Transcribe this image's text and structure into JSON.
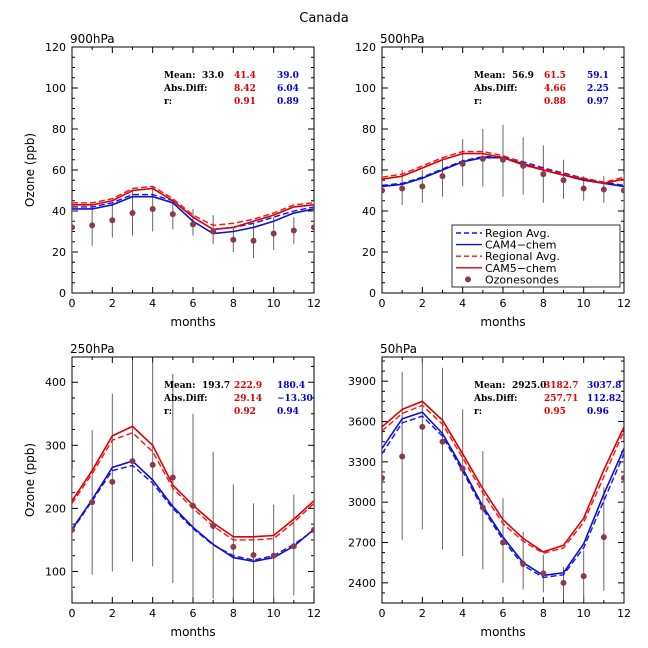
{
  "figure_title": "Canada",
  "x_label": "months",
  "y_label": "Ozone (ppb)",
  "stat_labels": {
    "mean": "Mean:",
    "absdiff": "Abs.Diff:",
    "r": "r:"
  },
  "legend": [
    {
      "label": "Region Avg.",
      "style": "dashed",
      "color": "#1010ff",
      "marker": "line"
    },
    {
      "label": "CAM4−chem",
      "style": "solid",
      "color": "#1010cc",
      "marker": "line"
    },
    {
      "label": "Regional Avg.",
      "style": "dashed",
      "color": "#ff1010",
      "marker": "line"
    },
    {
      "label": "CAM5−chem",
      "style": "solid",
      "color": "#dd0000",
      "marker": "line"
    },
    {
      "label": "Ozonesondes",
      "style": "none",
      "color": "#8b3a4a",
      "marker": "dot"
    }
  ],
  "colors": {
    "blue": "#1010ff",
    "blue_solid": "#1010cc",
    "red": "#ff1010",
    "red_solid": "#dd0000",
    "obs": "#8b3a4a",
    "obs_bar": "#666666"
  },
  "chart_data": [
    {
      "type": "line",
      "title": "900hPa",
      "xlim": [
        0,
        12
      ],
      "ylim": [
        0,
        120
      ],
      "x_ticks": [
        0,
        2,
        4,
        6,
        8,
        10,
        12
      ],
      "y_ticks": [
        0,
        20,
        40,
        60,
        80,
        100,
        120
      ],
      "show_ylabel": true,
      "stats": {
        "mean_obs": "33.0",
        "mean_red": "41.4",
        "mean_blue": "39.0",
        "absdiff_red": "8.42",
        "absdiff_blue": "6.04",
        "r_red": "0.91",
        "r_blue": "0.89"
      },
      "x": [
        0,
        1,
        2,
        3,
        4,
        5,
        6,
        7,
        8,
        9,
        10,
        11,
        12
      ],
      "series": [
        {
          "name": "Region Avg.",
          "values": [
            42,
            42,
            44,
            48,
            48,
            45,
            37,
            31,
            32,
            34,
            37,
            40,
            42
          ]
        },
        {
          "name": "CAM4−chem",
          "values": [
            41,
            41,
            43,
            47,
            47,
            44,
            35,
            29,
            30,
            32,
            35,
            39,
            41
          ]
        },
        {
          "name": "Regional Avg.",
          "values": [
            44,
            44,
            46,
            51,
            52,
            46,
            38,
            33,
            34,
            36,
            39,
            43,
            44
          ]
        },
        {
          "name": "CAM5−chem",
          "values": [
            43,
            43,
            45,
            50,
            51,
            45,
            37,
            31,
            32,
            35,
            38,
            42,
            43
          ]
        }
      ],
      "obs": {
        "values": [
          32,
          33,
          35.5,
          39,
          41,
          38.5,
          33.5,
          30,
          26,
          25.5,
          29,
          30.5,
          32
        ],
        "lo": [
          19,
          23,
          27,
          28,
          30,
          31,
          28,
          24,
          20,
          17,
          21,
          24,
          19
        ],
        "hi": [
          45,
          43,
          44,
          50,
          52,
          46,
          41,
          38,
          32,
          34,
          37,
          37,
          45
        ]
      }
    },
    {
      "type": "line",
      "title": "500hPa",
      "xlim": [
        0,
        12
      ],
      "ylim": [
        0,
        120
      ],
      "x_ticks": [
        0,
        2,
        4,
        6,
        8,
        10,
        12
      ],
      "y_ticks": [
        0,
        20,
        40,
        60,
        80,
        100,
        120
      ],
      "show_ylabel": false,
      "stats": {
        "mean_obs": "56.9",
        "mean_red": "61.5",
        "mean_blue": "59.1",
        "absdiff_red": "4.66",
        "absdiff_blue": "2.25",
        "r_red": "0.88",
        "r_blue": "0.97"
      },
      "x": [
        0,
        1,
        2,
        3,
        4,
        5,
        6,
        7,
        8,
        9,
        10,
        11,
        12
      ],
      "series": [
        {
          "name": "Region Avg.",
          "values": [
            52.5,
            53.5,
            56.5,
            60.5,
            64.5,
            66.5,
            66.5,
            64,
            61,
            58.5,
            56,
            54,
            52.5
          ]
        },
        {
          "name": "CAM4−chem",
          "values": [
            52,
            53,
            56,
            60,
            64,
            66,
            66,
            63,
            60,
            57.5,
            55,
            53.5,
            52
          ]
        },
        {
          "name": "Regional Avg.",
          "values": [
            56.5,
            58,
            62,
            66,
            69,
            69,
            67,
            63.5,
            60.5,
            58,
            56,
            54,
            56.5
          ]
        },
        {
          "name": "CAM5−chem",
          "values": [
            55.5,
            57,
            61,
            65,
            68,
            68,
            66,
            62.5,
            60,
            57.5,
            55.5,
            53.5,
            55.5
          ]
        }
      ],
      "obs": {
        "values": [
          50,
          51,
          52,
          57,
          63,
          65.5,
          65,
          62,
          58,
          55,
          51,
          50.5,
          50
        ],
        "lo": [
          41,
          43,
          44,
          47,
          52,
          52,
          47,
          48,
          44,
          46,
          45,
          44,
          41
        ],
        "hi": [
          58,
          60,
          60,
          66,
          75,
          80,
          82,
          76,
          72,
          65,
          57,
          57,
          58
        ]
      }
    },
    {
      "type": "line",
      "title": "250hPa",
      "xlim": [
        0,
        12
      ],
      "ylim": [
        50,
        440
      ],
      "x_ticks": [
        0,
        2,
        4,
        6,
        8,
        10,
        12
      ],
      "y_ticks": [
        100,
        200,
        300,
        400
      ],
      "show_ylabel": true,
      "stats": {
        "mean_obs": "193.7",
        "mean_red": "222.9",
        "mean_blue": "180.4",
        "absdiff_red": "29.14",
        "absdiff_blue": "−13.30",
        "r_red": "0.92",
        "r_blue": "0.94"
      },
      "x": [
        0,
        1,
        2,
        3,
        4,
        5,
        6,
        7,
        8,
        9,
        10,
        11,
        12
      ],
      "series": [
        {
          "name": "Region Avg.",
          "values": [
            165,
            212,
            260,
            268,
            240,
            200,
            168,
            142,
            125,
            118,
            125,
            143,
            165
          ]
        },
        {
          "name": "CAM4−chem",
          "values": [
            167,
            214,
            265,
            275,
            245,
            203,
            170,
            143,
            122,
            116,
            122,
            140,
            167
          ]
        },
        {
          "name": "Regional Avg.",
          "values": [
            208,
            255,
            308,
            320,
            290,
            232,
            200,
            172,
            150,
            150,
            152,
            178,
            208
          ]
        },
        {
          "name": "CAM5−chem",
          "values": [
            212,
            260,
            315,
            330,
            300,
            237,
            205,
            177,
            155,
            155,
            157,
            183,
            212
          ]
        }
      ],
      "obs": {
        "values": [
          166,
          210,
          242,
          275,
          269,
          249,
          204,
          172,
          139,
          126,
          125,
          140,
          166
        ],
        "lo": [
          70,
          95,
          100,
          116,
          108,
          82,
          60,
          57,
          55,
          53,
          52,
          62,
          70
        ],
        "hi": [
          262,
          324,
          382,
          436,
          432,
          413,
          350,
          290,
          238,
          208,
          206,
          222,
          262
        ]
      }
    },
    {
      "type": "line",
      "title": "50hPa",
      "xlim": [
        0,
        12
      ],
      "ylim": [
        2250,
        4080
      ],
      "x_ticks": [
        0,
        2,
        4,
        6,
        8,
        10,
        12
      ],
      "y_ticks": [
        2400,
        2700,
        3000,
        3300,
        3600,
        3900
      ],
      "show_ylabel": false,
      "stats": {
        "mean_obs": "2925.0",
        "mean_red": "3182.7",
        "mean_blue": "3037.8",
        "absdiff_red": "257.71",
        "absdiff_blue": "112.82",
        "r_red": "0.95",
        "r_blue": "0.96"
      },
      "x": [
        0,
        1,
        2,
        3,
        4,
        5,
        6,
        7,
        8,
        9,
        10,
        11,
        12
      ],
      "series": [
        {
          "name": "Region Avg.",
          "values": [
            3360,
            3590,
            3640,
            3490,
            3230,
            2950,
            2720,
            2530,
            2440,
            2460,
            2660,
            3010,
            3360
          ]
        },
        {
          "name": "CAM4−chem",
          "values": [
            3400,
            3620,
            3670,
            3510,
            3250,
            2970,
            2740,
            2550,
            2455,
            2475,
            2690,
            3060,
            3400
          ]
        },
        {
          "name": "Regional Avg.",
          "values": [
            3530,
            3660,
            3720,
            3580,
            3330,
            3070,
            2840,
            2710,
            2620,
            2660,
            2850,
            3190,
            3530
          ]
        },
        {
          "name": "CAM5−chem",
          "values": [
            3560,
            3690,
            3750,
            3610,
            3360,
            3100,
            2870,
            2730,
            2630,
            2680,
            2880,
            3240,
            3560
          ]
        }
      ],
      "obs": {
        "values": [
          3180,
          3340,
          3560,
          3450,
          3250,
          2960,
          2700,
          2540,
          2470,
          2400,
          2450,
          2740,
          3180
        ],
        "lo": [
          2950,
          2720,
          2800,
          2650,
          2600,
          2500,
          2400,
          2350,
          2330,
          2270,
          2260,
          2340,
          2950
        ],
        "hi": [
          3450,
          3970,
          4080,
          4000,
          3690,
          3380,
          3030,
          2780,
          2610,
          2520,
          2640,
          3110,
          3450
        ]
      }
    }
  ]
}
